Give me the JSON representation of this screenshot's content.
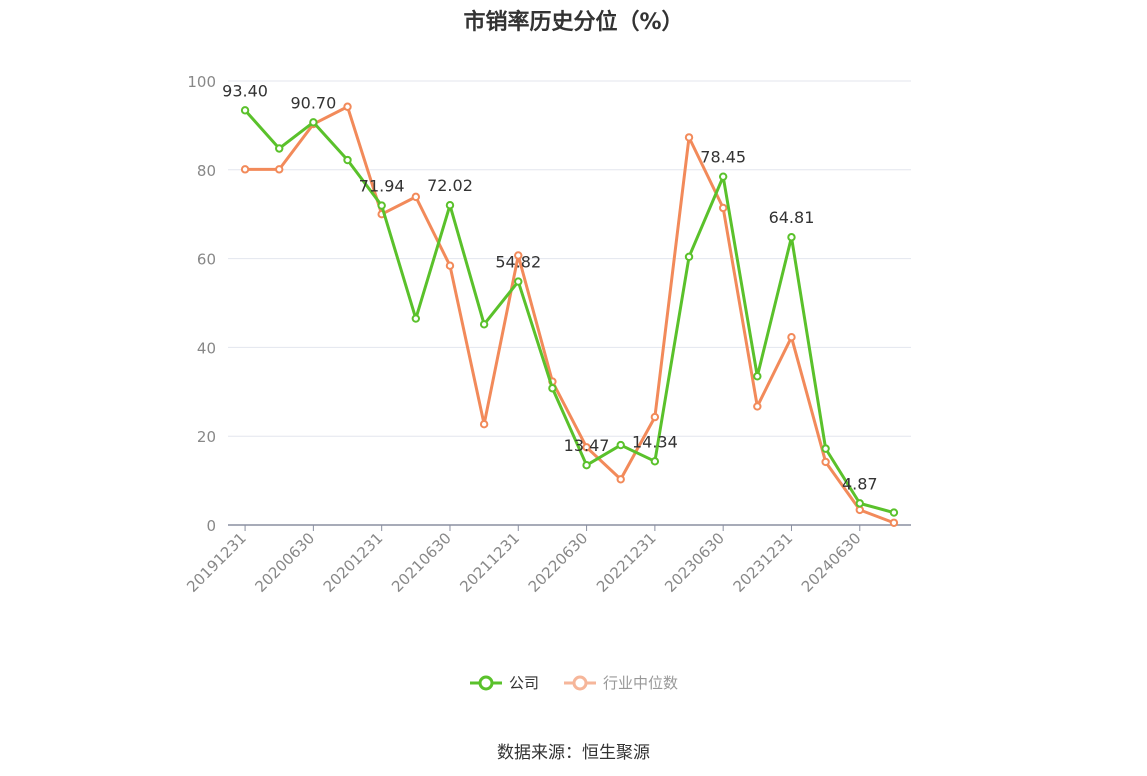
{
  "chart_data": {
    "type": "line",
    "title": "市销率历史分位（%）",
    "source_text": "数据来源：恒生聚源",
    "ylim": [
      0,
      100
    ],
    "yticks": [
      0,
      20,
      40,
      60,
      80,
      100
    ],
    "grid": true,
    "legend_position": "bottom",
    "x": [
      "20191231",
      "20200331",
      "20200630",
      "20200930",
      "20201231",
      "20210331",
      "20210630",
      "20210930",
      "20211231",
      "20220331",
      "20220630",
      "20220930",
      "20221231",
      "20230331",
      "20230630",
      "20230930",
      "20231231",
      "20240331",
      "20240630",
      "20240930"
    ],
    "xtick_labels": [
      "20191231",
      "20200630",
      "20201231",
      "20210630",
      "20211231",
      "20220630",
      "20221231",
      "20230630",
      "20231231",
      "20240630"
    ],
    "series": [
      {
        "name": "公司",
        "color": "#5ac12b",
        "values": [
          93.4,
          84.8,
          90.7,
          82.2,
          71.94,
          46.5,
          72.02,
          45.2,
          54.82,
          30.8,
          13.47,
          18.0,
          14.34,
          60.4,
          78.45,
          33.5,
          64.81,
          17.2,
          4.87,
          2.8
        ],
        "labels": {
          "0": "93.40",
          "2": "90.70",
          "4": "71.94",
          "6": "72.02",
          "8": "54.82",
          "10": "13.47",
          "12": "14.34",
          "14": "78.45",
          "16": "64.81",
          "18": "4.87"
        }
      },
      {
        "name": "行业中位数",
        "color": "#f28a5a",
        "values": [
          80.1,
          80.1,
          90.3,
          94.2,
          70.0,
          73.9,
          58.4,
          22.7,
          60.7,
          32.3,
          17.5,
          10.3,
          24.3,
          87.3,
          71.4,
          26.7,
          42.3,
          14.2,
          3.4,
          0.5
        ]
      }
    ]
  }
}
